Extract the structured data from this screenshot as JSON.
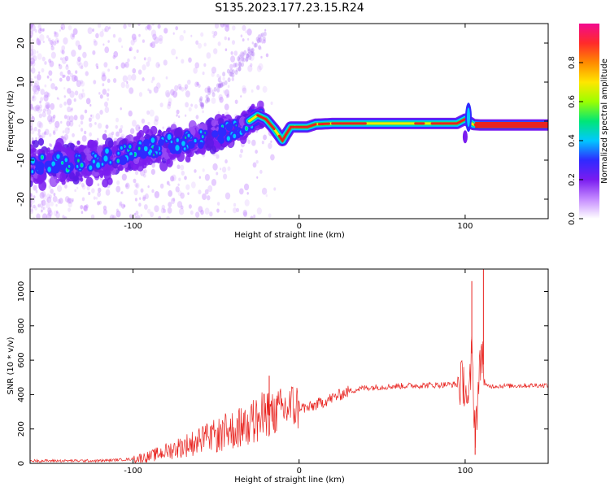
{
  "title": "S135.2023.177.23.15.R24",
  "colors": {
    "snr_line": "#e8231f",
    "spectral_ridge": "#e8231f"
  },
  "chart_data": [
    {
      "type": "heatmap",
      "name": "spectrogram",
      "xlabel": "Height of straight line (km)",
      "ylabel": "Frequency (Hz)",
      "xlim": [
        -162,
        150
      ],
      "ylim": [
        -25,
        25
      ],
      "x_ticks": [
        -100,
        0,
        100
      ],
      "y_ticks": [
        -20,
        -10,
        0,
        10,
        20
      ],
      "colorbar": {
        "label": "Normalized spectral amplitude",
        "range": [
          0,
          1
        ],
        "ticks": [
          "0.0",
          "0.2",
          "0.4",
          "0.6",
          "0.8"
        ],
        "tick_values": [
          0,
          0.2,
          0.4,
          0.6,
          0.8
        ],
        "colormap": [
          "#ffffff",
          "#c58bff",
          "#7a1cf0",
          "#2f2aff",
          "#00c8ff",
          "#00e676",
          "#9cff00",
          "#ffe600",
          "#ff8a00",
          "#ff2a2a",
          "#f20a8f"
        ]
      },
      "ridge": {
        "x": [
          -162,
          -140,
          -120,
          -100,
          -80,
          -60,
          -45,
          -35,
          -25,
          -20,
          -15,
          -10,
          -8,
          -5,
          0,
          5,
          10,
          20,
          40,
          60,
          80,
          95,
          100,
          105,
          110,
          150
        ],
        "y": [
          -11,
          -11,
          -10,
          -8,
          -6,
          -4.5,
          -3,
          -1.5,
          1.5,
          0.5,
          -2,
          -5,
          -3.5,
          -1.5,
          -1.5,
          -1.5,
          -0.8,
          -0.6,
          -0.6,
          -0.6,
          -0.6,
          -0.6,
          0.5,
          -0.9,
          -1.0,
          -1.0
        ]
      },
      "grid": false
    },
    {
      "type": "line",
      "name": "snr",
      "xlabel": "Height of straight line (km)",
      "ylabel": "SNR (10 * v/v)",
      "xlim": [
        -162,
        150
      ],
      "ylim": [
        0,
        1130
      ],
      "x_ticks": [
        -100,
        0,
        100
      ],
      "y_ticks": [
        0,
        200,
        400,
        600,
        800,
        1000
      ],
      "x": [
        -162,
        -140,
        -120,
        -100,
        -90,
        -80,
        -70,
        -60,
        -50,
        -45,
        -40,
        -35,
        -30,
        -25,
        -20,
        -15,
        -10,
        -5,
        0,
        5,
        10,
        15,
        20,
        25,
        30,
        40,
        60,
        80,
        95,
        100,
        102,
        104,
        106,
        108,
        110,
        112,
        120,
        150
      ],
      "y": [
        15,
        15,
        15,
        25,
        40,
        70,
        100,
        130,
        160,
        180,
        195,
        210,
        230,
        250,
        270,
        290,
        310,
        330,
        330,
        320,
        340,
        360,
        380,
        400,
        420,
        440,
        450,
        455,
        460,
        470,
        300,
        640,
        200,
        420,
        700,
        450,
        450,
        455
      ],
      "spikes": [
        {
          "x": -18,
          "y": 510
        },
        {
          "x": 104,
          "y": 1060
        },
        {
          "x": 106,
          "y": 50
        },
        {
          "x": 111,
          "y": 1130
        }
      ],
      "grid": false
    }
  ]
}
